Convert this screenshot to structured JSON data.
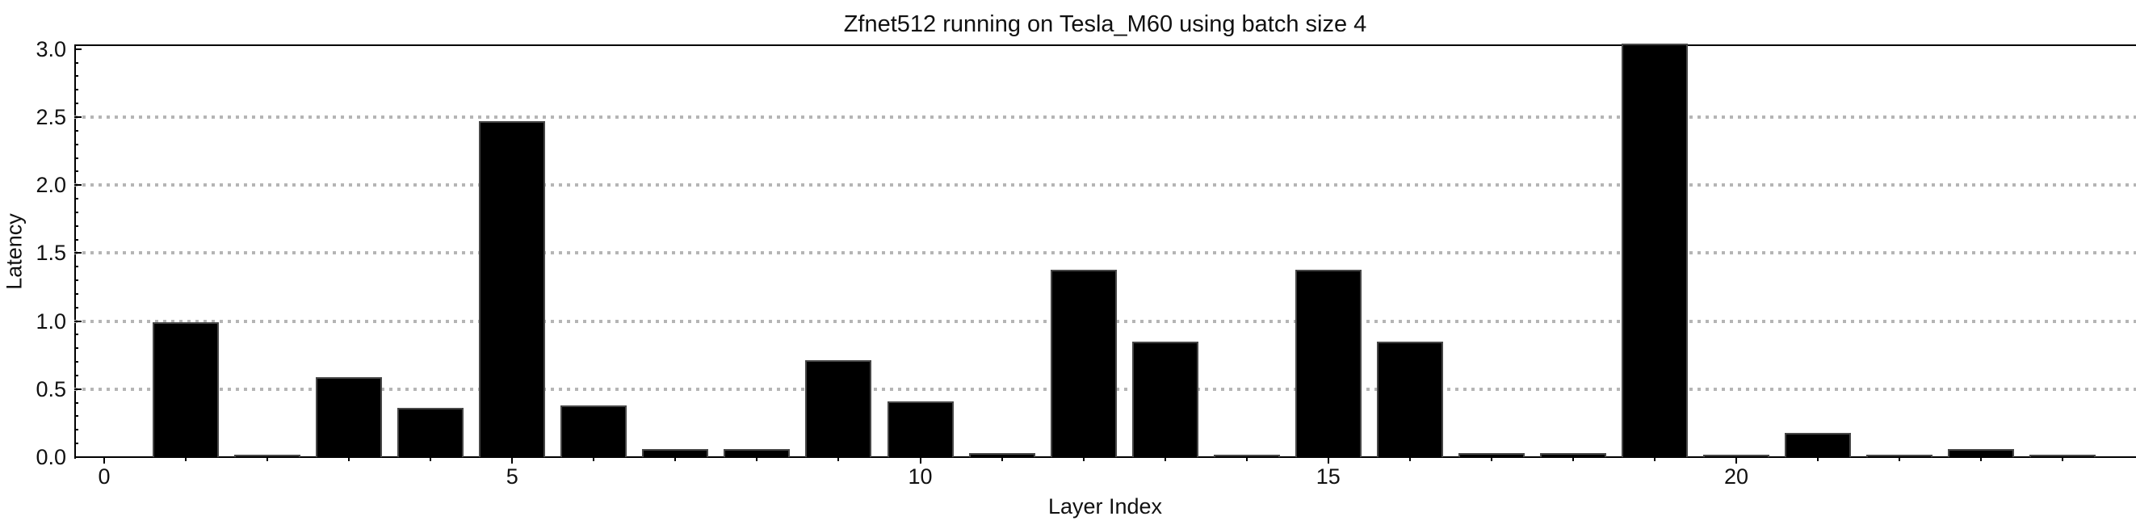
{
  "chart_data": {
    "type": "bar",
    "title": "Zfnet512 running on Tesla_M60 using batch size 4",
    "xlabel": "Layer Index",
    "ylabel": "Latency",
    "x": [
      0,
      1,
      2,
      3,
      4,
      5,
      6,
      7,
      8,
      9,
      10,
      11,
      12,
      13,
      14,
      15,
      16,
      17,
      18,
      19,
      20,
      21,
      22,
      23,
      24
    ],
    "values": [
      0.0,
      0.99,
      0.02,
      0.59,
      0.36,
      2.47,
      0.38,
      0.06,
      0.06,
      0.71,
      0.41,
      0.03,
      1.38,
      0.85,
      0.02,
      1.38,
      0.85,
      0.03,
      0.03,
      3.04,
      0.02,
      0.18,
      0.02,
      0.06,
      0.02
    ],
    "xlim": [
      -0.37,
      24.9
    ],
    "ylim": [
      0,
      3.04
    ],
    "y_ticks": [
      {
        "value": 0.0,
        "label": "0.0"
      },
      {
        "value": 0.5,
        "label": "0.5"
      },
      {
        "value": 1.0,
        "label": "1.0"
      },
      {
        "value": 1.5,
        "label": "1.5"
      },
      {
        "value": 2.0,
        "label": "2.0"
      },
      {
        "value": 2.5,
        "label": "2.5"
      },
      {
        "value": 3.0,
        "label": "3.0"
      }
    ],
    "x_ticks": [
      {
        "value": 0,
        "label": "0"
      },
      {
        "value": 5,
        "label": "5"
      },
      {
        "value": 10,
        "label": "10"
      },
      {
        "value": 15,
        "label": "15"
      },
      {
        "value": 20,
        "label": "20"
      }
    ],
    "gridline_values": [
      0.5,
      1.0,
      1.5,
      2.0,
      2.5
    ],
    "y_minor_step": 0.1,
    "x_minor_step": 1,
    "grid": "horizontal-dotted",
    "legend": "none",
    "colors": {
      "bar_fill": "#000000",
      "bar_stroke": "#474747",
      "gridline": "#b5b5b5",
      "axis": "#000000",
      "text": "#111111",
      "background": "#ffffff"
    }
  }
}
